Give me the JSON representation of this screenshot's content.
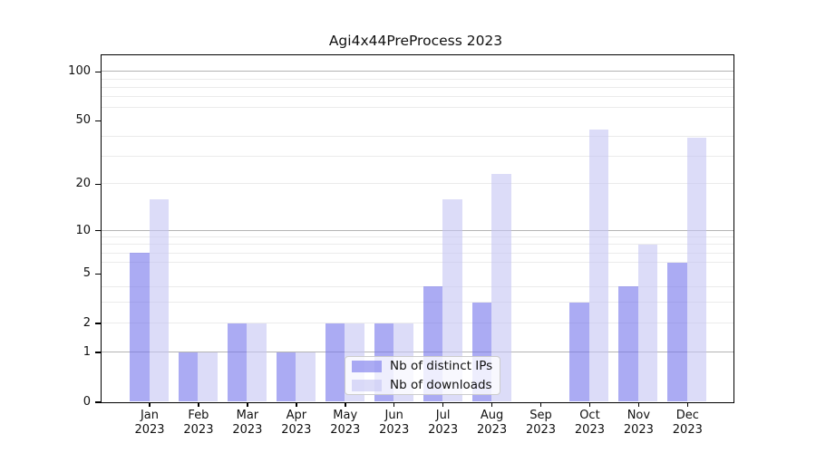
{
  "title": "Agi4x44PreProcess 2023",
  "colors": {
    "ips_bar": "rgba(115,115,235,0.6)",
    "downloads_bar": "rgba(197,197,244,0.6)",
    "major_grid": "#b4b4b4",
    "minor_grid": "#ebebeb",
    "axis": "#000000"
  },
  "chart_data": {
    "type": "bar",
    "title": "Agi4x44PreProcess 2023",
    "scale": "log1p",
    "categories": [
      "Jan",
      "Feb",
      "Mar",
      "Apr",
      "May",
      "Jun",
      "Jul",
      "Aug",
      "Sep",
      "Oct",
      "Nov",
      "Dec"
    ],
    "year": "2023",
    "series": [
      {
        "name": "Nb of distinct IPs",
        "values": [
          7,
          1,
          2,
          1,
          2,
          2,
          4,
          3,
          0,
          3,
          4,
          6
        ]
      },
      {
        "name": "Nb of downloads",
        "values": [
          16,
          1,
          2,
          1,
          2,
          2,
          16,
          23,
          0,
          44,
          8,
          39
        ]
      }
    ],
    "yticks": [
      0,
      1,
      2,
      5,
      10,
      20,
      50,
      100
    ],
    "yticklabels": [
      "0",
      "1",
      "2",
      "5",
      "10",
      "20",
      "50",
      "100"
    ],
    "ylim": [
      0,
      126.3
    ],
    "major_gridlines": [
      1,
      10,
      100
    ],
    "minor_gridlines": [
      2,
      3,
      4,
      6,
      7,
      8,
      9,
      20,
      30,
      40,
      60,
      70,
      80,
      90
    ],
    "grid": true,
    "legend_position": "lower center",
    "xlabel": "",
    "ylabel": ""
  }
}
